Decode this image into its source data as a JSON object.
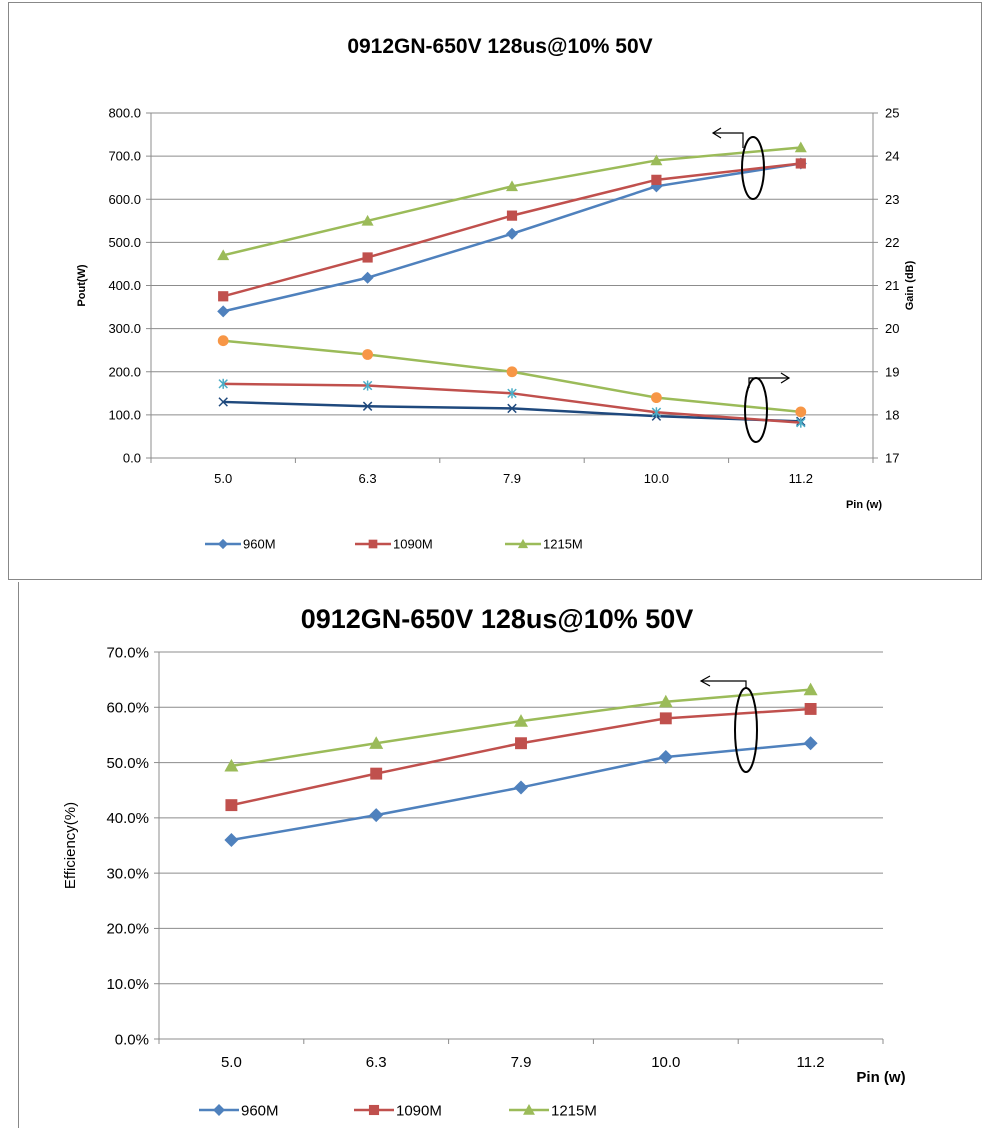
{
  "chart_data": [
    {
      "type": "line",
      "title": "0912GN-650V  128us@10%  50V",
      "xlabel": "Pin (w)",
      "ylabel": "Pout(W)",
      "y2label": "Gain (dB)",
      "categories": [
        "5.0",
        "6.3",
        "7.9",
        "10.0",
        "11.2"
      ],
      "ylim": [
        0,
        800
      ],
      "yticks": [
        "0.0",
        "100.0",
        "200.0",
        "300.0",
        "400.0",
        "500.0",
        "600.0",
        "700.0",
        "800.0"
      ],
      "y2lim": [
        17,
        25
      ],
      "y2ticks": [
        "17",
        "18",
        "19",
        "20",
        "21",
        "22",
        "23",
        "24",
        "25"
      ],
      "grid": true,
      "legend_position": "bottom",
      "series": [
        {
          "name": "960M",
          "axis": "left",
          "color": "#4F81BD",
          "marker": "diamond",
          "values": [
            340,
            418,
            520,
            630,
            683
          ]
        },
        {
          "name": "1090M",
          "axis": "left",
          "color": "#C0504D",
          "marker": "square",
          "values": [
            375,
            465,
            562,
            645,
            683
          ]
        },
        {
          "name": "1215M",
          "axis": "left",
          "color": "#9BBB59",
          "marker": "triangle",
          "values": [
            470,
            550,
            630,
            690,
            720
          ]
        },
        {
          "axis": "right",
          "color": "#1F497D",
          "marker": "x",
          "values": [
            18.3,
            18.2,
            18.15,
            17.97,
            17.85
          ]
        },
        {
          "axis": "right",
          "color": "#C0504D",
          "marker": "star",
          "values": [
            18.72,
            18.68,
            18.5,
            18.06,
            17.82
          ]
        },
        {
          "axis": "right",
          "color": "#9BBB59",
          "marker": "circle",
          "markerColor": "#F79646",
          "values": [
            19.72,
            19.4,
            19.0,
            18.4,
            18.07
          ]
        }
      ]
    },
    {
      "type": "line",
      "title": "0912GN-650V  128us@10%  50V",
      "xlabel": "Pin (w)",
      "ylabel": "Efficiency(%)",
      "categories": [
        "5.0",
        "6.3",
        "7.9",
        "10.0",
        "11.2"
      ],
      "ylim": [
        0,
        70
      ],
      "yticks": [
        "0.0%",
        "10.0%",
        "20.0%",
        "30.0%",
        "40.0%",
        "50.0%",
        "60.0%",
        "70.0%"
      ],
      "grid": true,
      "legend_position": "bottom",
      "series": [
        {
          "name": "960M",
          "color": "#4F81BD",
          "marker": "diamond",
          "values": [
            36.0,
            40.5,
            45.5,
            51.0,
            53.5
          ]
        },
        {
          "name": "1090M",
          "color": "#C0504D",
          "marker": "square",
          "values": [
            42.3,
            48.0,
            53.5,
            58.0,
            59.7
          ]
        },
        {
          "name": "1215M",
          "color": "#9BBB59",
          "marker": "triangle",
          "values": [
            49.4,
            53.5,
            57.5,
            61.0,
            63.2
          ]
        }
      ]
    }
  ]
}
